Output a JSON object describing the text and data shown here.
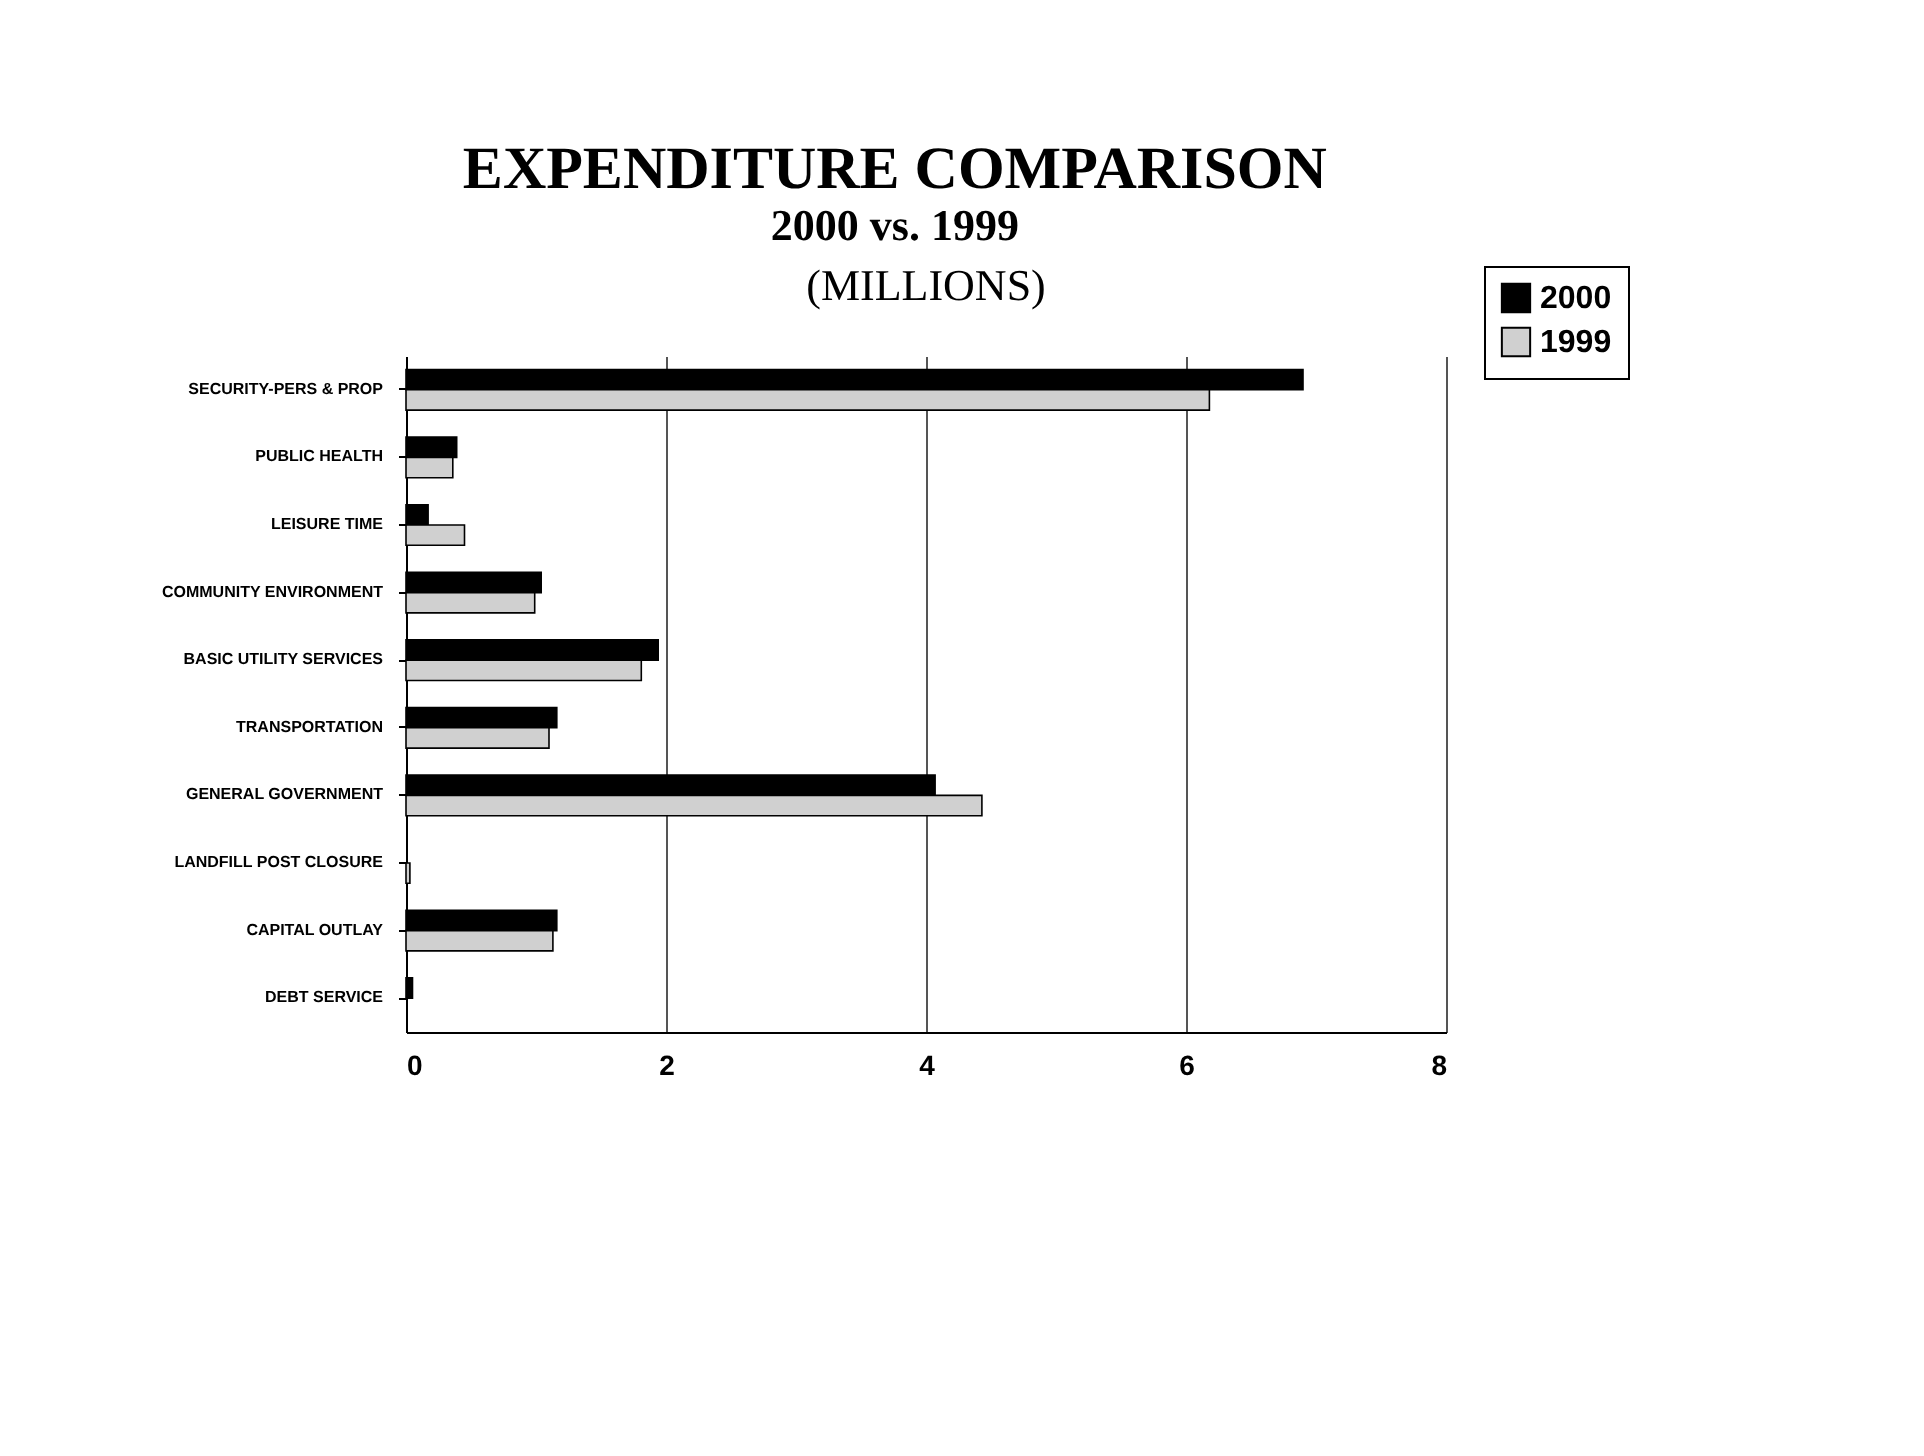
{
  "chart_data": {
    "type": "bar",
    "orientation": "horizontal",
    "title": "EXPENDITURE COMPARISON",
    "subtitle": "2000 vs. 1999",
    "annotations": [
      "(MILLIONS)"
    ],
    "categories": [
      "SECURITY-PERS & PROP",
      "PUBLIC HEALTH",
      "LEISURE TIME",
      "COMMUNITY ENVIRONMENT",
      "BASIC UTILITY SERVICES",
      "TRANSPORTATION",
      "GENERAL GOVERNMENT",
      "LANDFILL POST CLOSURE",
      "CAPITAL OUTLAY",
      "DEBT SERVICE"
    ],
    "series": [
      {
        "name": "2000",
        "color": "#000000",
        "values": [
          6.9,
          0.39,
          0.17,
          1.04,
          1.94,
          1.16,
          4.07,
          null,
          1.16,
          0.05
        ]
      },
      {
        "name": "1999",
        "color": "#d0d0d0",
        "values": [
          6.18,
          0.36,
          0.45,
          0.99,
          1.81,
          1.1,
          4.43,
          0.03,
          1.13,
          null
        ]
      }
    ],
    "xlim": [
      0,
      8
    ],
    "xticks": [
      0,
      2,
      4,
      6,
      8
    ],
    "grid": "x",
    "legend": "right"
  }
}
